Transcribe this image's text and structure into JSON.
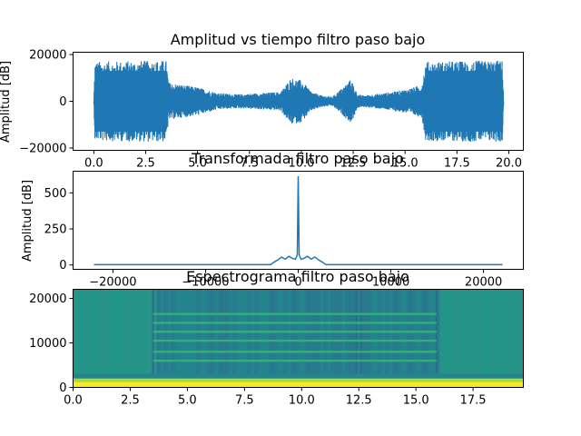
{
  "chart_data": [
    {
      "type": "line",
      "title": "Amplitud vs tiempo filtro paso bajo",
      "xlabel": "",
      "ylabel": "Amplitud [dB]",
      "xlim": [
        -1.0,
        20.7
      ],
      "ylim": [
        -21000,
        21000
      ],
      "xticks": [
        0.0,
        2.5,
        5.0,
        7.5,
        10.0,
        12.5,
        15.0,
        17.5,
        20.0
      ],
      "xtick_labels": [
        "0.0",
        "2.5",
        "5.0",
        "7.5",
        "10.0",
        "12.5",
        "15.0",
        "17.5",
        "20.0"
      ],
      "yticks": [
        -20000,
        0,
        20000
      ],
      "ytick_labels": [
        "−20000",
        "0",
        "20000"
      ],
      "color": "#1f77b4",
      "envelope": {
        "t": [
          0.0,
          0.05,
          3.5,
          3.6,
          5.0,
          6.0,
          7.0,
          8.0,
          9.0,
          9.5,
          10.0,
          10.5,
          11.0,
          11.5,
          12.0,
          12.4,
          12.7,
          13.0,
          14.0,
          15.0,
          15.8,
          16.0,
          19.7,
          19.75
        ],
        "amp": [
          0,
          17000,
          17500,
          8000,
          6000,
          3500,
          3000,
          3500,
          4000,
          10000,
          9000,
          4000,
          2500,
          2000,
          6000,
          9500,
          3000,
          2500,
          3500,
          5000,
          7000,
          17000,
          17500,
          0
        ]
      }
    },
    {
      "type": "line",
      "title": "Transformada filtro paso bajo",
      "xlabel": "",
      "ylabel": "Amplitud [dB]",
      "xlim": [
        -24300,
        24300
      ],
      "ylim": [
        -30,
        650
      ],
      "xticks": [
        -20000,
        -10000,
        0,
        10000,
        20000
      ],
      "xtick_labels": [
        "−20000",
        "−10000",
        "0",
        "10000",
        "20000"
      ],
      "yticks": [
        0,
        250,
        500
      ],
      "ytick_labels": [
        "0",
        "250",
        "500"
      ],
      "color": "#1f77b4",
      "points": {
        "x": [
          -22050,
          -3000,
          -2600,
          -2200,
          -1800,
          -1400,
          -1000,
          -600,
          -300,
          -100,
          0,
          100,
          300,
          600,
          1000,
          1400,
          1800,
          2200,
          2600,
          3000,
          22050
        ],
        "y": [
          2,
          2,
          20,
          35,
          55,
          40,
          60,
          45,
          40,
          70,
          615,
          70,
          40,
          45,
          60,
          40,
          55,
          35,
          20,
          2,
          2
        ]
      }
    },
    {
      "type": "heatmap",
      "title": "Espectrograma filtro paso bajo",
      "xlabel": "",
      "ylabel": "",
      "xlim": [
        0,
        19.7
      ],
      "ylim": [
        0,
        22050
      ],
      "xticks": [
        0.0,
        2.5,
        5.0,
        7.5,
        10.0,
        12.5,
        15.0,
        17.5
      ],
      "xtick_labels": [
        "0.0",
        "2.5",
        "5.0",
        "7.5",
        "10.0",
        "12.5",
        "15.0",
        "17.5"
      ],
      "yticks": [
        0,
        10000,
        20000
      ],
      "ytick_labels": [
        "0",
        "10000",
        "20000"
      ],
      "colormap": "viridis",
      "harmonic_bands_hz": [
        6000,
        8000,
        10500,
        12500,
        14500,
        16500
      ],
      "low_band_hz": [
        0,
        2000
      ],
      "segment_boundaries_s": [
        3.5,
        12.4,
        12.6,
        15.9
      ]
    }
  ]
}
